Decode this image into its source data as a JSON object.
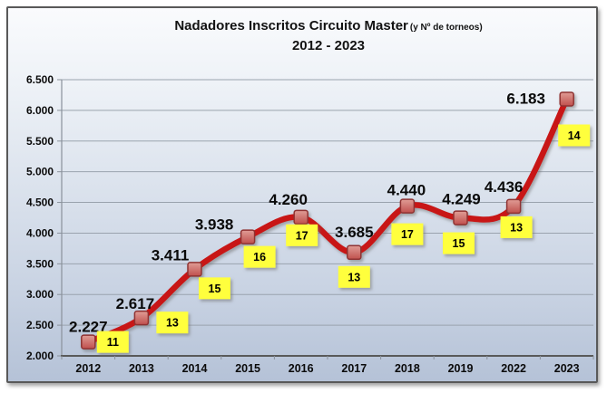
{
  "chart_data": {
    "type": "line",
    "title": "Nadadores Inscritos Circuito Master",
    "title_note": "(y Nº de torneos)",
    "subtitle": "2012 - 2023",
    "categories": [
      "2012",
      "2013",
      "2014",
      "2015",
      "2016",
      "2017",
      "2018",
      "2019",
      "2022",
      "2023"
    ],
    "series": [
      {
        "name": "Nadadores inscritos",
        "values": [
          2227,
          2617,
          3411,
          3938,
          4260,
          3685,
          4440,
          4249,
          4436,
          6183
        ],
        "labels": [
          "2.227",
          "2.617",
          "3.411",
          "3.938",
          "4.260",
          "3.685",
          "4.440",
          "4.249",
          "4.436",
          "6.183"
        ]
      },
      {
        "name": "Nº de torneos",
        "values": [
          11,
          13,
          15,
          16,
          17,
          13,
          17,
          15,
          13,
          14
        ]
      }
    ],
    "ylim": [
      2000,
      6500
    ],
    "ytick_step": 500,
    "ytick_labels": [
      "2.000",
      "2.500",
      "3.000",
      "3.500",
      "4.000",
      "4.500",
      "5.000",
      "5.500",
      "6.000",
      "6.500"
    ],
    "grid": true,
    "legend": "none"
  },
  "colors": {
    "line": "#c81212",
    "line_shadow": "#6f6f6f",
    "marker_fill_top": "#e09d96",
    "marker_fill_bottom": "#c0504d",
    "marker_border": "#8f3331",
    "badge_fill": "#ffff3d",
    "badge_text": "#000000",
    "value_label": "#0a0a0a",
    "grid_line": "#9aa3ae",
    "axis_line": "#595959",
    "axis_minor": "#8a919b",
    "tick_text": "#0a0a0a"
  }
}
